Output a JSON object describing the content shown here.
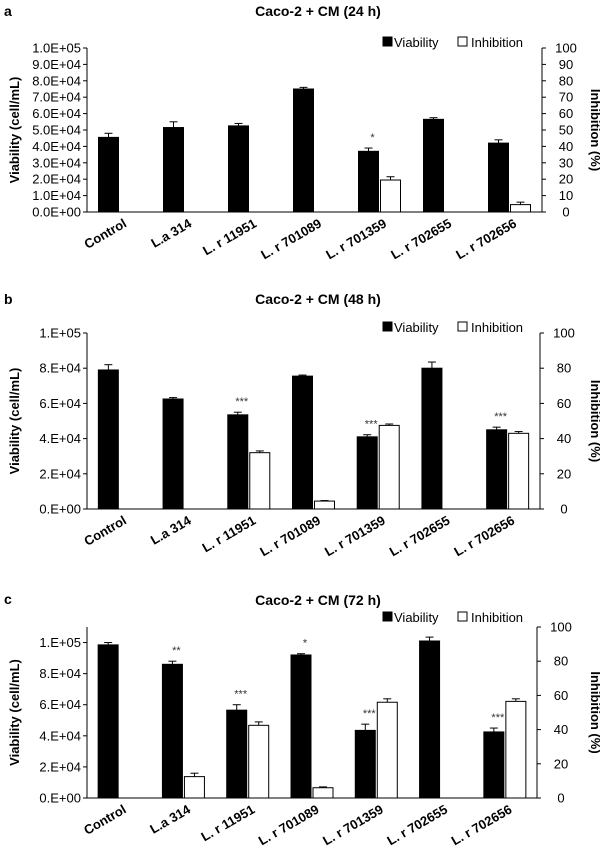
{
  "chart_data": [
    {
      "type": "bar",
      "panel": "a",
      "title": "Caco-2 + CM (24 h)",
      "categories": [
        "Control",
        "L.a 314",
        "L. r 11951",
        "L. r 701089",
        "L. r 701359",
        "L. r 702655",
        "L. r 702656"
      ],
      "ylabel": "Viability (cell/mL)",
      "y2label": "Inhibition (%)",
      "ylim": [
        0,
        100000
      ],
      "y2lim": [
        0,
        100
      ],
      "yticks": [
        0,
        10000,
        20000,
        30000,
        40000,
        50000,
        60000,
        70000,
        80000,
        90000,
        100000
      ],
      "ytick_labels": [
        "0.0E+00",
        "1.0E+04",
        "2.0E+04",
        "3.0E+04",
        "4.0E+04",
        "5.0E+04",
        "6.0E+04",
        "7.0E+04",
        "8.0E+04",
        "9.0E+04",
        "1.0E+05"
      ],
      "y2ticks": [
        0,
        10,
        20,
        30,
        40,
        50,
        60,
        70,
        80,
        90,
        100
      ],
      "y2tick_labels": [
        "0",
        "10",
        "20",
        "30",
        "40",
        "50",
        "60",
        "70",
        "80",
        "90",
        "100"
      ],
      "legend": [
        "Viability",
        "Inhibition"
      ],
      "legend_position": "top-right",
      "series": [
        {
          "name": "Viability",
          "axis": "left",
          "color": "#000000",
          "values": [
            45500,
            51500,
            52500,
            75000,
            37000,
            56500,
            42000
          ],
          "errors": [
            2500,
            3500,
            1500,
            1000,
            2000,
            1000,
            2000
          ]
        },
        {
          "name": "Inhibition",
          "axis": "right",
          "color": "#ffffff",
          "values": [
            null,
            null,
            null,
            null,
            19.5,
            null,
            4.5
          ],
          "errors": [
            null,
            null,
            null,
            null,
            2.0,
            null,
            1.5
          ]
        }
      ],
      "significance": [
        "",
        "",
        "",
        "",
        "*",
        "",
        ""
      ]
    },
    {
      "type": "bar",
      "panel": "b",
      "title": "Caco-2 + CM (48 h)",
      "categories": [
        "Control",
        "L.a 314",
        "L. r 11951",
        "L. r 701089",
        "L. r 701359",
        "L. r 702655",
        "L. r 702656"
      ],
      "ylabel": "Viability (cell/mL)",
      "y2label": "Inhibition (%)",
      "ylim": [
        0,
        100000
      ],
      "y2lim": [
        0,
        100
      ],
      "yticks": [
        0,
        20000,
        40000,
        60000,
        80000,
        100000
      ],
      "ytick_labels": [
        "0.E+00",
        "2.E+04",
        "4.E+04",
        "6.E+04",
        "8.E+04",
        "1.E+05"
      ],
      "y2ticks": [
        0,
        20,
        40,
        60,
        80,
        100
      ],
      "y2tick_labels": [
        "0",
        "20",
        "40",
        "60",
        "80",
        "100"
      ],
      "legend": [
        "Viability",
        "Inhibition"
      ],
      "legend_position": "top-right",
      "series": [
        {
          "name": "Viability",
          "axis": "left",
          "color": "#000000",
          "values": [
            79000,
            62500,
            53500,
            75500,
            41000,
            80000,
            45000
          ],
          "errors": [
            3000,
            800,
            1500,
            600,
            1200,
            3500,
            1500
          ]
        },
        {
          "name": "Inhibition",
          "axis": "right",
          "color": "#ffffff",
          "values": [
            null,
            null,
            32.0,
            4.5,
            47.5,
            null,
            43.0
          ],
          "errors": [
            null,
            null,
            1.0,
            0.3,
            0.8,
            null,
            1.0
          ]
        }
      ],
      "significance": [
        "",
        "",
        "***",
        "",
        "***",
        "",
        "***"
      ]
    },
    {
      "type": "bar",
      "panel": "c",
      "title": "Caco-2 + CM (72 h)",
      "categories": [
        "Control",
        "L.a 314",
        "L. r 11951",
        "L. r 701089",
        "L. r 701359",
        "L. r 702655",
        "L. r 702656"
      ],
      "ylabel": "Viability (cell/mL)",
      "y2label": "Inhibition (%)",
      "ylim": [
        0,
        110000
      ],
      "y2lim": [
        0,
        100
      ],
      "yticks": [
        0,
        20000,
        40000,
        60000,
        80000,
        100000
      ],
      "ytick_labels": [
        "0.E+00",
        "2.E+04",
        "4.E+04",
        "6.E+04",
        "8.E+04",
        "1.E+05"
      ],
      "y2ticks": [
        0,
        20,
        40,
        60,
        80,
        100
      ],
      "y2tick_labels": [
        "0",
        "20",
        "40",
        "60",
        "80",
        "100"
      ],
      "legend": [
        "Viability",
        "Inhibition"
      ],
      "legend_position": "top-right",
      "series": [
        {
          "name": "Viability",
          "axis": "left",
          "color": "#000000",
          "values": [
            98500,
            86000,
            56500,
            92000,
            43500,
            101000,
            42500
          ],
          "errors": [
            1500,
            2000,
            3500,
            800,
            4000,
            2500,
            2500
          ]
        },
        {
          "name": "Inhibition",
          "axis": "right",
          "color": "#ffffff",
          "values": [
            null,
            12.5,
            42.5,
            6.0,
            56.0,
            null,
            56.5
          ],
          "errors": [
            null,
            2.0,
            2.0,
            0.5,
            2.0,
            null,
            1.5
          ]
        }
      ],
      "significance": [
        "",
        "**",
        "***",
        "*",
        "***",
        "",
        "***"
      ]
    }
  ]
}
